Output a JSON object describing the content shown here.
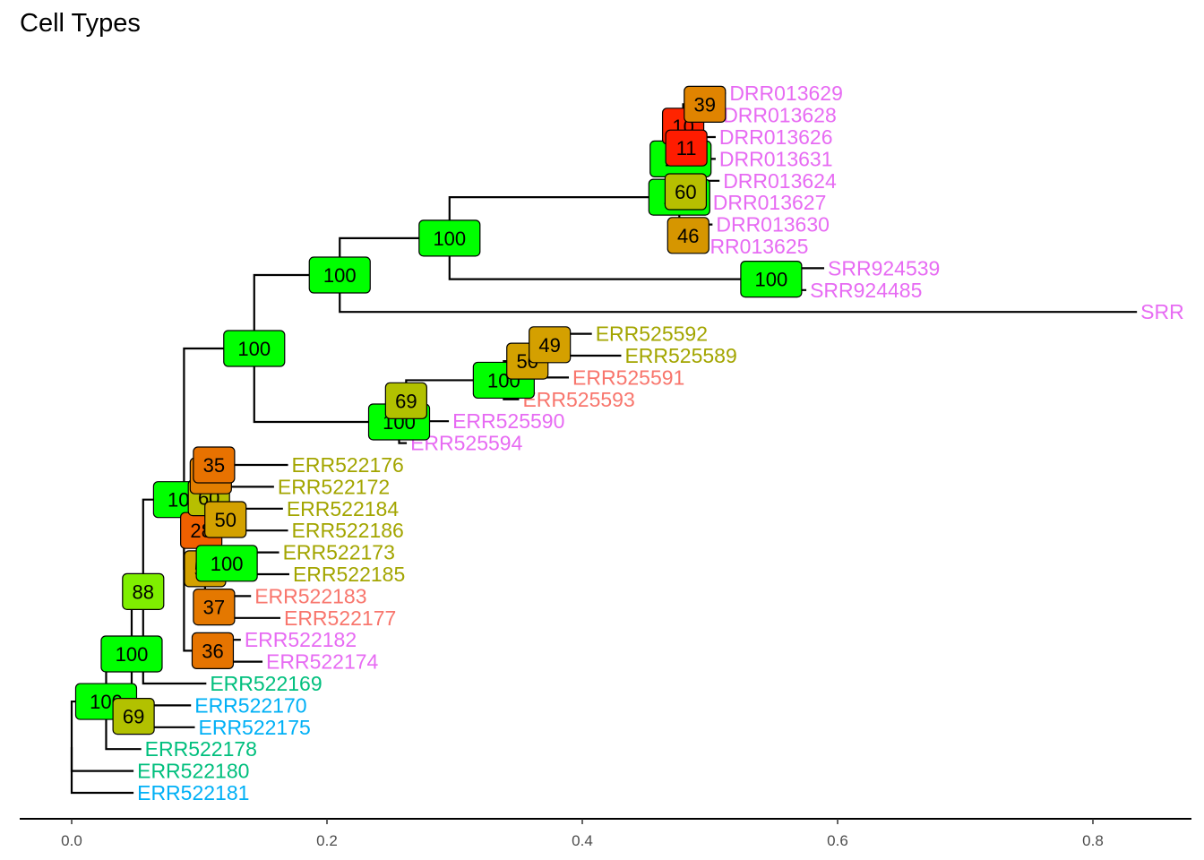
{
  "chart_data": {
    "type": "tree",
    "title": "Cell Types",
    "xlabel": "",
    "xlim": [
      -0.05,
      0.875
    ],
    "x_ticks": [
      "0.0",
      "0.2",
      "0.4",
      "0.6",
      "0.8"
    ],
    "x_tick_values": [
      0.0,
      0.2,
      0.4,
      0.6,
      0.8
    ],
    "colors": {
      "salmon": "#F8766D",
      "olive": "#A3A500",
      "green": "#00BF7D",
      "blue": "#00B0F6",
      "pink": "#E76BF3"
    },
    "tips": [
      {
        "label": "DRR013629",
        "x": 0.5125,
        "color": "#E76BF3"
      },
      {
        "label": "DRR013628",
        "x": 0.5075,
        "color": "#E76BF3"
      },
      {
        "label": "DRR013626",
        "x": 0.5045,
        "color": "#E76BF3"
      },
      {
        "label": "DRR013631",
        "x": 0.5045,
        "color": "#E76BF3"
      },
      {
        "label": "DRR013624",
        "x": 0.5075,
        "color": "#E76BF3"
      },
      {
        "label": "DRR013627",
        "x": 0.4995,
        "color": "#E76BF3"
      },
      {
        "label": "DRR013630",
        "x": 0.502,
        "color": "#E76BF3"
      },
      {
        "label": "DRR013625",
        "x": 0.4855,
        "color": "#E76BF3"
      },
      {
        "label": "SRR924539",
        "x": 0.5895,
        "color": "#E76BF3"
      },
      {
        "label": "SRR924485",
        "x": 0.5755,
        "color": "#E76BF3"
      },
      {
        "label": "SRR",
        "x": 0.8345,
        "color": "#E76BF3"
      },
      {
        "label": "ERR525592",
        "x": 0.4075,
        "color": "#A3A500"
      },
      {
        "label": "ERR525589",
        "x": 0.4305,
        "color": "#A3A500"
      },
      {
        "label": "ERR525591",
        "x": 0.3895,
        "color": "#F8766D"
      },
      {
        "label": "ERR525593",
        "x": 0.3505,
        "color": "#F8766D"
      },
      {
        "label": "ERR525590",
        "x": 0.2955,
        "color": "#E76BF3"
      },
      {
        "label": "ERR525594",
        "x": 0.2625,
        "color": "#E76BF3"
      },
      {
        "label": "ERR522176",
        "x": 0.1695,
        "color": "#A3A500"
      },
      {
        "label": "ERR522172",
        "x": 0.1585,
        "color": "#A3A500"
      },
      {
        "label": "ERR522184",
        "x": 0.1655,
        "color": "#A3A500"
      },
      {
        "label": "ERR522186",
        "x": 0.1695,
        "color": "#A3A500"
      },
      {
        "label": "ERR522173",
        "x": 0.1625,
        "color": "#A3A500"
      },
      {
        "label": "ERR522185",
        "x": 0.1705,
        "color": "#A3A500"
      },
      {
        "label": "ERR522183",
        "x": 0.1405,
        "color": "#F8766D"
      },
      {
        "label": "ERR522177",
        "x": 0.1635,
        "color": "#F8766D"
      },
      {
        "label": "ERR522182",
        "x": 0.1325,
        "color": "#E76BF3"
      },
      {
        "label": "ERR522174",
        "x": 0.1495,
        "color": "#E76BF3"
      },
      {
        "label": "ERR522169",
        "x": 0.1055,
        "color": "#00BF7D"
      },
      {
        "label": "ERR522170",
        "x": 0.0935,
        "color": "#00B0F6"
      },
      {
        "label": "ERR522175",
        "x": 0.0965,
        "color": "#00B0F6"
      },
      {
        "label": "ERR522178",
        "x": 0.0545,
        "color": "#00BF7D"
      },
      {
        "label": "ERR522180",
        "x": 0.0485,
        "color": "#00BF7D"
      },
      {
        "label": "ERR522181",
        "x": 0.0485,
        "color": "#00B0F6"
      }
    ],
    "nodes": [
      {
        "id": "root",
        "x": 0.0,
        "parent": null,
        "bootstrap": null
      },
      {
        "id": "n1",
        "x": 0.027,
        "parent": "root",
        "bootstrap": 100
      },
      {
        "id": "n2",
        "x": 0.047,
        "parent": "n1",
        "bootstrap": 100
      },
      {
        "id": "n3",
        "x": 0.0485,
        "parent": "n1",
        "bootstrap": 69
      },
      {
        "id": "n4",
        "x": 0.056,
        "parent": "n2",
        "bootstrap": 88
      },
      {
        "id": "n5",
        "x": 0.088,
        "parent": "n4",
        "bootstrap": 100
      },
      {
        "id": "n6",
        "x": 0.143,
        "parent": "n5",
        "bootstrap": 100
      },
      {
        "id": "n7",
        "x": 0.21,
        "parent": "n6",
        "bootstrap": 100
      },
      {
        "id": "n8",
        "x": 0.296,
        "parent": "n7",
        "bootstrap": 100
      },
      {
        "id": "n9",
        "x": 0.476,
        "parent": "n8",
        "bootstrap": 100
      },
      {
        "id": "n10",
        "x": 0.477,
        "parent": "n9",
        "bootstrap": 100
      },
      {
        "id": "n11",
        "x": 0.479,
        "parent": "n10",
        "bootstrap": 10
      },
      {
        "id": "n12",
        "x": 0.481,
        "parent": "n10",
        "bootstrap": 60
      },
      {
        "id": "n13",
        "x": 0.4815,
        "parent": "n11",
        "bootstrap": 11
      },
      {
        "id": "n14",
        "x": 0.483,
        "parent": "n9",
        "bootstrap": 46
      },
      {
        "id": "n15",
        "x": 0.496,
        "parent": "n11",
        "bootstrap": 39
      },
      {
        "id": "n16",
        "x": 0.548,
        "parent": "n8",
        "bootstrap": 100
      },
      {
        "id": "n17",
        "x": 0.2565,
        "parent": "n6",
        "bootstrap": 100
      },
      {
        "id": "n18",
        "x": 0.262,
        "parent": "n17",
        "bootstrap": 69
      },
      {
        "id": "n19",
        "x": 0.3385,
        "parent": "n18",
        "bootstrap": 100
      },
      {
        "id": "n20",
        "x": 0.357,
        "parent": "n19",
        "bootstrap": 50
      },
      {
        "id": "n21",
        "x": 0.3745,
        "parent": "n20",
        "bootstrap": 49
      },
      {
        "id": "n22",
        "x": 0.1045,
        "parent": "n5",
        "bootstrap": 50
      },
      {
        "id": "n23",
        "x": 0.1015,
        "parent": "n22",
        "bootstrap": 28
      },
      {
        "id": "n24",
        "x": 0.1075,
        "parent": "n23",
        "bootstrap": 60
      },
      {
        "id": "n25",
        "x": 0.109,
        "parent": "n24",
        "bootstrap": 38
      },
      {
        "id": "n26",
        "x": 0.1115,
        "parent": "n25",
        "bootstrap": 35
      },
      {
        "id": "n27",
        "x": 0.1205,
        "parent": "n24",
        "bootstrap": 50
      },
      {
        "id": "n28",
        "x": 0.1215,
        "parent": "n23",
        "bootstrap": 100
      },
      {
        "id": "n29",
        "x": 0.1115,
        "parent": "n22",
        "bootstrap": 37
      },
      {
        "id": "n30",
        "x": 0.1105,
        "parent": "n5",
        "bootstrap": 36
      }
    ],
    "edges": [
      [
        "root",
        "n1"
      ],
      [
        "root",
        "ERR522180"
      ],
      [
        "root",
        "ERR522181"
      ],
      [
        "n1",
        "n2"
      ],
      [
        "n1",
        "ERR522178"
      ],
      [
        "n2",
        "n4"
      ],
      [
        "n2",
        "n3"
      ],
      [
        "n3",
        "ERR522170"
      ],
      [
        "n3",
        "ERR522175"
      ],
      [
        "n4",
        "n5"
      ],
      [
        "n4",
        "ERR522169"
      ],
      [
        "n5",
        "n6"
      ],
      [
        "n5",
        "n22"
      ],
      [
        "n5",
        "n30"
      ],
      [
        "n6",
        "n7"
      ],
      [
        "n6",
        "n17"
      ],
      [
        "n7",
        "n8"
      ],
      [
        "n7",
        "SRR"
      ],
      [
        "n8",
        "n9"
      ],
      [
        "n8",
        "n16"
      ],
      [
        "n9",
        "n10"
      ],
      [
        "n9",
        "n14"
      ],
      [
        "n10",
        "n11"
      ],
      [
        "n10",
        "n12"
      ],
      [
        "n11",
        "n15"
      ],
      [
        "n11",
        "n13"
      ],
      [
        "n15",
        "DRR013629"
      ],
      [
        "n15",
        "DRR013628"
      ],
      [
        "n13",
        "DRR013626"
      ],
      [
        "n13",
        "DRR013631"
      ],
      [
        "n12",
        "DRR013624"
      ],
      [
        "n12",
        "DRR013627"
      ],
      [
        "n14",
        "DRR013630"
      ],
      [
        "n14",
        "DRR013625"
      ],
      [
        "n16",
        "SRR924539"
      ],
      [
        "n16",
        "SRR924485"
      ],
      [
        "n17",
        "n18"
      ],
      [
        "n17",
        "ERR525594"
      ],
      [
        "n18",
        "n19"
      ],
      [
        "n18",
        "ERR525590"
      ],
      [
        "n19",
        "n20"
      ],
      [
        "n19",
        "ERR525593"
      ],
      [
        "n20",
        "n21"
      ],
      [
        "n20",
        "ERR525591"
      ],
      [
        "n21",
        "ERR525592"
      ],
      [
        "n21",
        "ERR525589"
      ],
      [
        "n22",
        "n23"
      ],
      [
        "n22",
        "n29"
      ],
      [
        "n23",
        "n24"
      ],
      [
        "n23",
        "n28"
      ],
      [
        "n24",
        "n25"
      ],
      [
        "n24",
        "n27"
      ],
      [
        "n25",
        "n26"
      ],
      [
        "n25",
        "ERR522172"
      ],
      [
        "n26",
        "ERR522176"
      ],
      [
        "n27",
        "ERR522184"
      ],
      [
        "n27",
        "ERR522186"
      ],
      [
        "n28",
        "ERR522173"
      ],
      [
        "n28",
        "ERR522185"
      ],
      [
        "n29",
        "ERR522183"
      ],
      [
        "n29",
        "ERR522177"
      ],
      [
        "n30",
        "ERR522182"
      ],
      [
        "n30",
        "ERR522174"
      ]
    ],
    "bootstrap_colors": {
      "100": "#00FF00",
      "88": "#7FEF00",
      "69": "#B2C100",
      "60": "#B7BF00",
      "50": "#D3A100",
      "49": "#D4A000",
      "46": "#D69600",
      "39": "#E08400",
      "38": "#E27E00",
      "37": "#E47800",
      "36": "#E67400",
      "35": "#E87200",
      "28": "#F06000",
      "11": "#FF1C00",
      "10": "#FF2400"
    }
  }
}
